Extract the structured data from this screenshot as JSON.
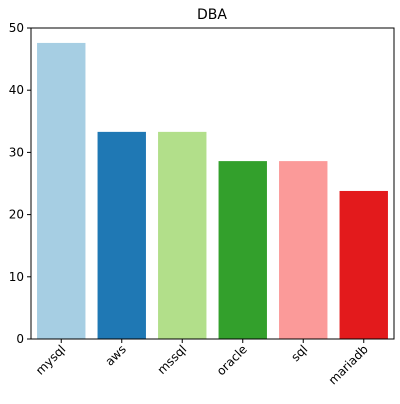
{
  "chart_data": {
    "type": "bar",
    "title": "DBA",
    "xlabel": "",
    "ylabel": "",
    "categories": [
      "mysql",
      "aws",
      "mssql",
      "oracle",
      "sql",
      "mariadb"
    ],
    "values": [
      47.6,
      33.3,
      33.3,
      28.6,
      28.6,
      23.8
    ],
    "ylim": [
      0,
      50
    ],
    "yticks": [
      0,
      10,
      20,
      30,
      40,
      50
    ],
    "colors": [
      "#a6cee3",
      "#1f78b4",
      "#b2df8a",
      "#33a02c",
      "#fb9a99",
      "#e31a1c"
    ],
    "grid": false,
    "legend": "none"
  }
}
